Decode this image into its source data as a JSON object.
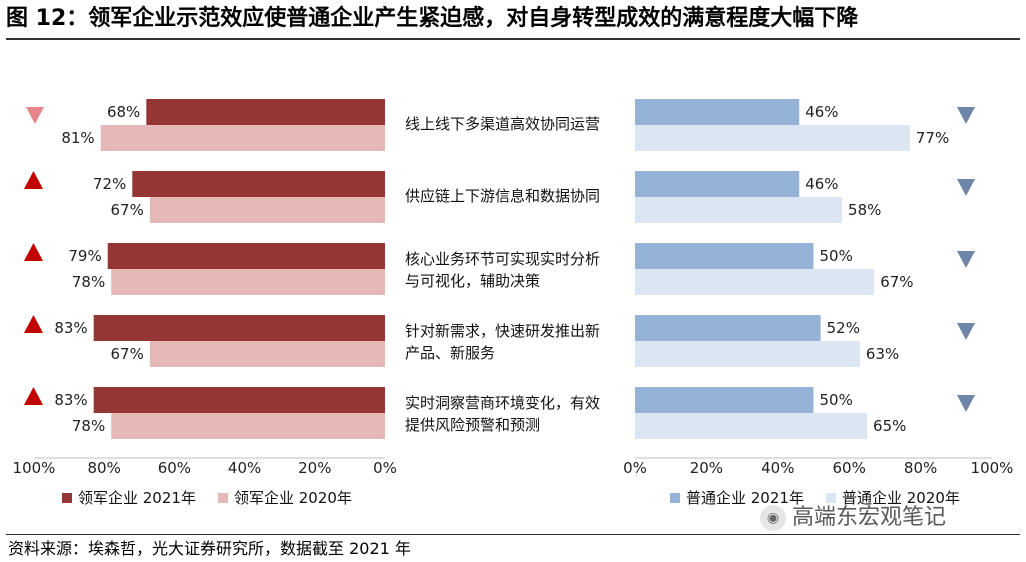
{
  "title": "图 12：领军企业示范效应使普通企业产生紧迫感，对自身转型成效的满意程度大幅下降",
  "source": "资料来源：埃森哲，光大证券研究所，数据截至 2021 年",
  "watermark": "高端东宏观笔记",
  "colors": {
    "leader_2021": "#943634",
    "leader_2020": "#e6b9b8",
    "normal_2021": "#95b3d7",
    "normal_2020": "#dce6f2",
    "up_arrow": "#c00000",
    "down_arrow_leader": "#e6858a",
    "down_arrow_normal": "#6f86aa"
  },
  "chart_data": {
    "type": "bar",
    "categories": [
      [
        "线上线下多渠道高效协同运营"
      ],
      [
        "供应链上下游信息和数据协同"
      ],
      [
        "核心业务环节可实现实时分析",
        "与可视化，辅助决策"
      ],
      [
        "针对新需求，快速研发推出新",
        "产品、新服务"
      ],
      [
        "实时洞察营商环境变化，有效",
        "提供风险预警和预测"
      ]
    ],
    "panels": [
      {
        "group": "领军企业",
        "direction": "left",
        "xlim": [
          0,
          100
        ],
        "xticks": [
          "100%",
          "80%",
          "60%",
          "40%",
          "20%",
          "0%"
        ],
        "series": [
          {
            "name": "领军企业 2021年",
            "values": [
              68,
              72,
              79,
              83,
              83
            ],
            "labels": [
              "68%",
              "72%",
              "79%",
              "83%",
              "83%"
            ]
          },
          {
            "name": "领军企业 2020年",
            "values": [
              81,
              67,
              78,
              67,
              78
            ],
            "labels": [
              "81%",
              "67%",
              "78%",
              "67%",
              "78%"
            ]
          }
        ],
        "change": [
          "down",
          "up",
          "up",
          "up",
          "up"
        ]
      },
      {
        "group": "普通企业",
        "direction": "right",
        "xlim": [
          0,
          100
        ],
        "xticks": [
          "0%",
          "20%",
          "40%",
          "60%",
          "80%",
          "100%"
        ],
        "series": [
          {
            "name": "普通企业 2021年",
            "values": [
              46,
              46,
              50,
              52,
              50
            ],
            "labels": [
              "46%",
              "46%",
              "50%",
              "52%",
              "50%"
            ]
          },
          {
            "name": "普通企业 2020年",
            "values": [
              77,
              58,
              67,
              63,
              65
            ],
            "labels": [
              "77%",
              "58%",
              "67%",
              "63%",
              "65%"
            ]
          }
        ],
        "change": [
          "down",
          "down",
          "down",
          "down",
          "down"
        ]
      }
    ],
    "legend_position": "bottom",
    "grid": false
  }
}
